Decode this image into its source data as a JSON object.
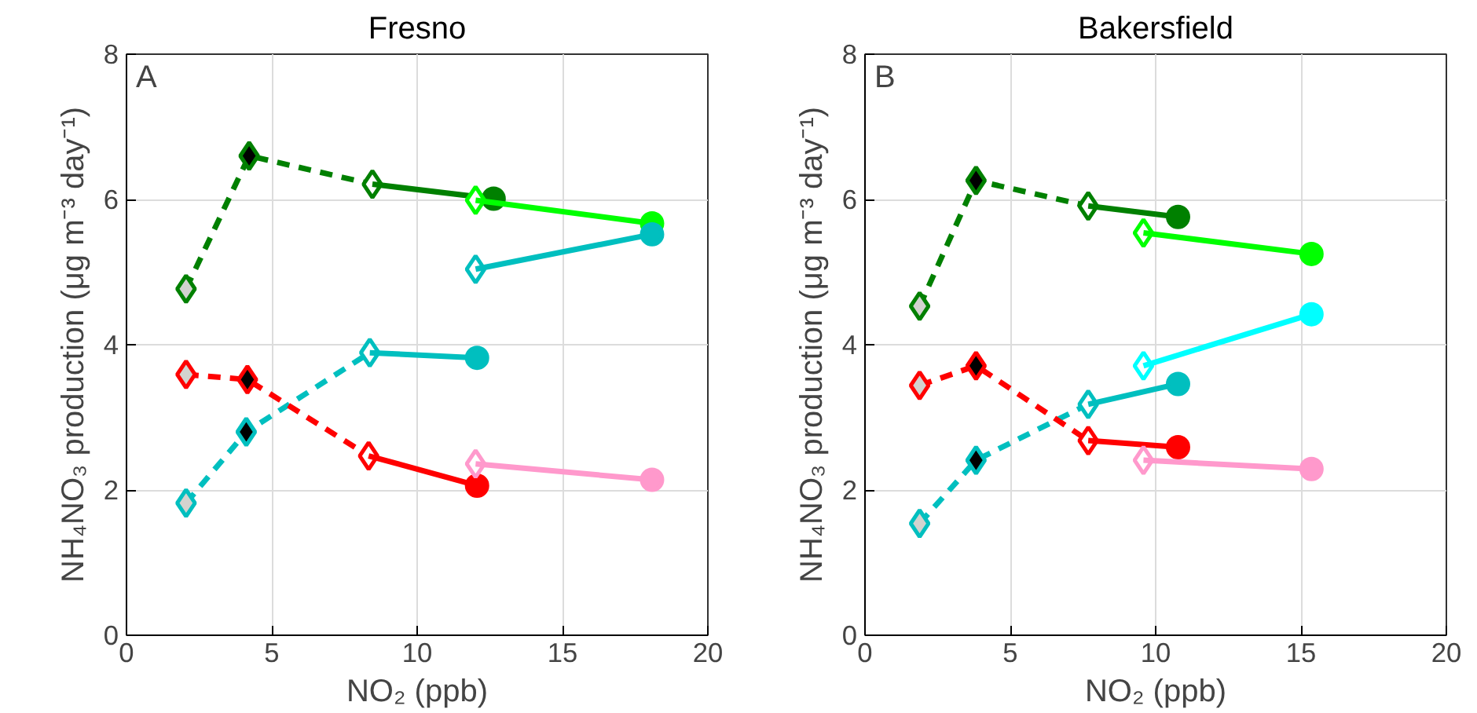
{
  "chart_data": [
    {
      "type": "line",
      "title": "Fresno",
      "xlabel": "NO₂ (ppb)",
      "ylabel": "NH₄NO₃ production (μg m⁻³ day⁻¹)",
      "annotations": [
        "A"
      ],
      "xlim": [
        0,
        20
      ],
      "xticks": [
        0,
        5,
        10,
        15,
        20
      ],
      "ylim": [
        0,
        8
      ],
      "yticks": [
        0,
        2,
        4,
        6,
        8
      ],
      "grid": true,
      "series": [
        {
          "color": "#008000",
          "line_style": "dashed",
          "marker": "diamond",
          "x": [
            2.05,
            4.22,
            8.46
          ],
          "values": [
            4.77,
            6.6,
            6.21
          ],
          "colors": [
            "#d3d3cf",
            "#000000",
            "#ffffff"
          ]
        },
        {
          "color": "#008000",
          "line_style": "solid",
          "marker": "circle",
          "x": [
            8.46,
            12.63
          ],
          "values": [
            6.21,
            6.01
          ],
          "colors": [
            null,
            "#008000"
          ]
        },
        {
          "color": "#00ff00",
          "line_style": "solid",
          "marker": "diamond",
          "x": [
            12.01
          ],
          "values": [
            5.99
          ],
          "colors": [
            "#ffffff"
          ]
        },
        {
          "color": "#00ff00",
          "line_style": "solid",
          "marker": "circle",
          "x": [
            12.01,
            18.08
          ],
          "values": [
            5.99,
            5.67
          ],
          "colors": [
            null,
            "#00ff00"
          ]
        },
        {
          "color": "#00bfbf",
          "line_style": "solid",
          "marker": "diamond",
          "x": [
            12.01
          ],
          "values": [
            5.04
          ],
          "colors": [
            "#ffffff"
          ]
        },
        {
          "color": "#00bfbf",
          "line_style": "solid",
          "marker": "circle",
          "x": [
            12.01,
            18.08
          ],
          "values": [
            5.04,
            5.52
          ],
          "colors": [
            null,
            "#00bfbf"
          ]
        },
        {
          "color": "#00bfbf",
          "line_style": "dashed",
          "marker": "diamond",
          "x": [
            2.05,
            4.12,
            8.37
          ],
          "values": [
            1.82,
            2.8,
            3.89
          ],
          "colors": [
            "#d3d3cf",
            "#000000",
            "#ffffff"
          ]
        },
        {
          "color": "#00bfbf",
          "line_style": "solid",
          "marker": "circle",
          "x": [
            8.37,
            12.06
          ],
          "values": [
            3.89,
            3.82
          ],
          "colors": [
            null,
            "#00bfbf"
          ]
        },
        {
          "color": "#ff0000",
          "line_style": "dashed",
          "marker": "diamond",
          "x": [
            2.05,
            4.16,
            8.33
          ],
          "values": [
            3.59,
            3.52,
            2.47
          ],
          "colors": [
            "#d3d3cf",
            "#000000",
            "#ffffff"
          ]
        },
        {
          "color": "#ff0000",
          "line_style": "solid",
          "marker": "circle",
          "x": [
            8.33,
            12.06
          ],
          "values": [
            2.47,
            2.06
          ],
          "colors": [
            null,
            "#ff0000"
          ]
        },
        {
          "color": "#ff99cc",
          "line_style": "solid",
          "marker": "diamond",
          "x": [
            12.01
          ],
          "values": [
            2.36
          ],
          "colors": [
            "#ffffff"
          ]
        },
        {
          "color": "#ff99cc",
          "line_style": "solid",
          "marker": "circle",
          "x": [
            12.01,
            18.08
          ],
          "values": [
            2.36,
            2.14
          ],
          "colors": [
            null,
            "#ff99cc"
          ]
        }
      ]
    },
    {
      "type": "line",
      "title": "Bakersfield",
      "xlabel": "NO₂ (ppb)",
      "ylabel": "NH₄NO₃ production (μg m⁻³ day⁻¹)",
      "annotations": [
        "B"
      ],
      "xlim": [
        0,
        20
      ],
      "xticks": [
        0,
        5,
        10,
        15,
        20
      ],
      "ylim": [
        0,
        8
      ],
      "yticks": [
        0,
        2,
        4,
        6,
        8
      ],
      "grid": true,
      "series": [
        {
          "color": "#008000",
          "line_style": "dashed",
          "marker": "diamond",
          "x": [
            1.88,
            3.82,
            7.68
          ],
          "values": [
            4.53,
            6.26,
            5.91
          ],
          "colors": [
            "#d3d3cf",
            "#000000",
            "#ffffff"
          ]
        },
        {
          "color": "#008000",
          "line_style": "solid",
          "marker": "circle",
          "x": [
            7.68,
            10.77
          ],
          "values": [
            5.91,
            5.76
          ],
          "colors": [
            null,
            "#008000"
          ]
        },
        {
          "color": "#00ff00",
          "line_style": "solid",
          "marker": "diamond",
          "x": [
            9.58
          ],
          "values": [
            5.54
          ],
          "colors": [
            "#ffffff"
          ]
        },
        {
          "color": "#00ff00",
          "line_style": "solid",
          "marker": "circle",
          "x": [
            9.58,
            15.36
          ],
          "values": [
            5.54,
            5.25
          ],
          "colors": [
            null,
            "#00ff00"
          ]
        },
        {
          "color": "#00ffff",
          "line_style": "solid",
          "marker": "diamond",
          "x": [
            9.58
          ],
          "values": [
            3.71
          ],
          "colors": [
            "#ffffff"
          ]
        },
        {
          "color": "#00ffff",
          "line_style": "solid",
          "marker": "circle",
          "x": [
            9.58,
            15.36
          ],
          "values": [
            3.71,
            4.42
          ],
          "colors": [
            null,
            "#00ffff"
          ]
        },
        {
          "color": "#00bfbf",
          "line_style": "dashed",
          "marker": "diamond",
          "x": [
            1.88,
            3.82,
            7.68
          ],
          "values": [
            1.54,
            2.41,
            3.18
          ],
          "colors": [
            "#d3d3cf",
            "#000000",
            "#ffffff"
          ]
        },
        {
          "color": "#00bfbf",
          "line_style": "solid",
          "marker": "circle",
          "x": [
            7.68,
            10.77
          ],
          "values": [
            3.18,
            3.46
          ],
          "colors": [
            null,
            "#00bfbf"
          ]
        },
        {
          "color": "#ff0000",
          "line_style": "dashed",
          "marker": "diamond",
          "x": [
            1.88,
            3.82,
            7.68
          ],
          "values": [
            3.44,
            3.71,
            2.68
          ],
          "colors": [
            "#d3d3cf",
            "#000000",
            "#ffffff"
          ]
        },
        {
          "color": "#ff0000",
          "line_style": "solid",
          "marker": "circle",
          "x": [
            7.68,
            10.77
          ],
          "values": [
            2.68,
            2.59
          ],
          "colors": [
            null,
            "#ff0000"
          ]
        },
        {
          "color": "#ff99cc",
          "line_style": "solid",
          "marker": "diamond",
          "x": [
            9.58
          ],
          "values": [
            2.41
          ],
          "colors": [
            "#ffffff"
          ]
        },
        {
          "color": "#ff99cc",
          "line_style": "solid",
          "marker": "circle",
          "x": [
            9.58,
            15.36
          ],
          "values": [
            2.41,
            2.29
          ],
          "colors": [
            null,
            "#ff99cc"
          ]
        }
      ]
    }
  ]
}
